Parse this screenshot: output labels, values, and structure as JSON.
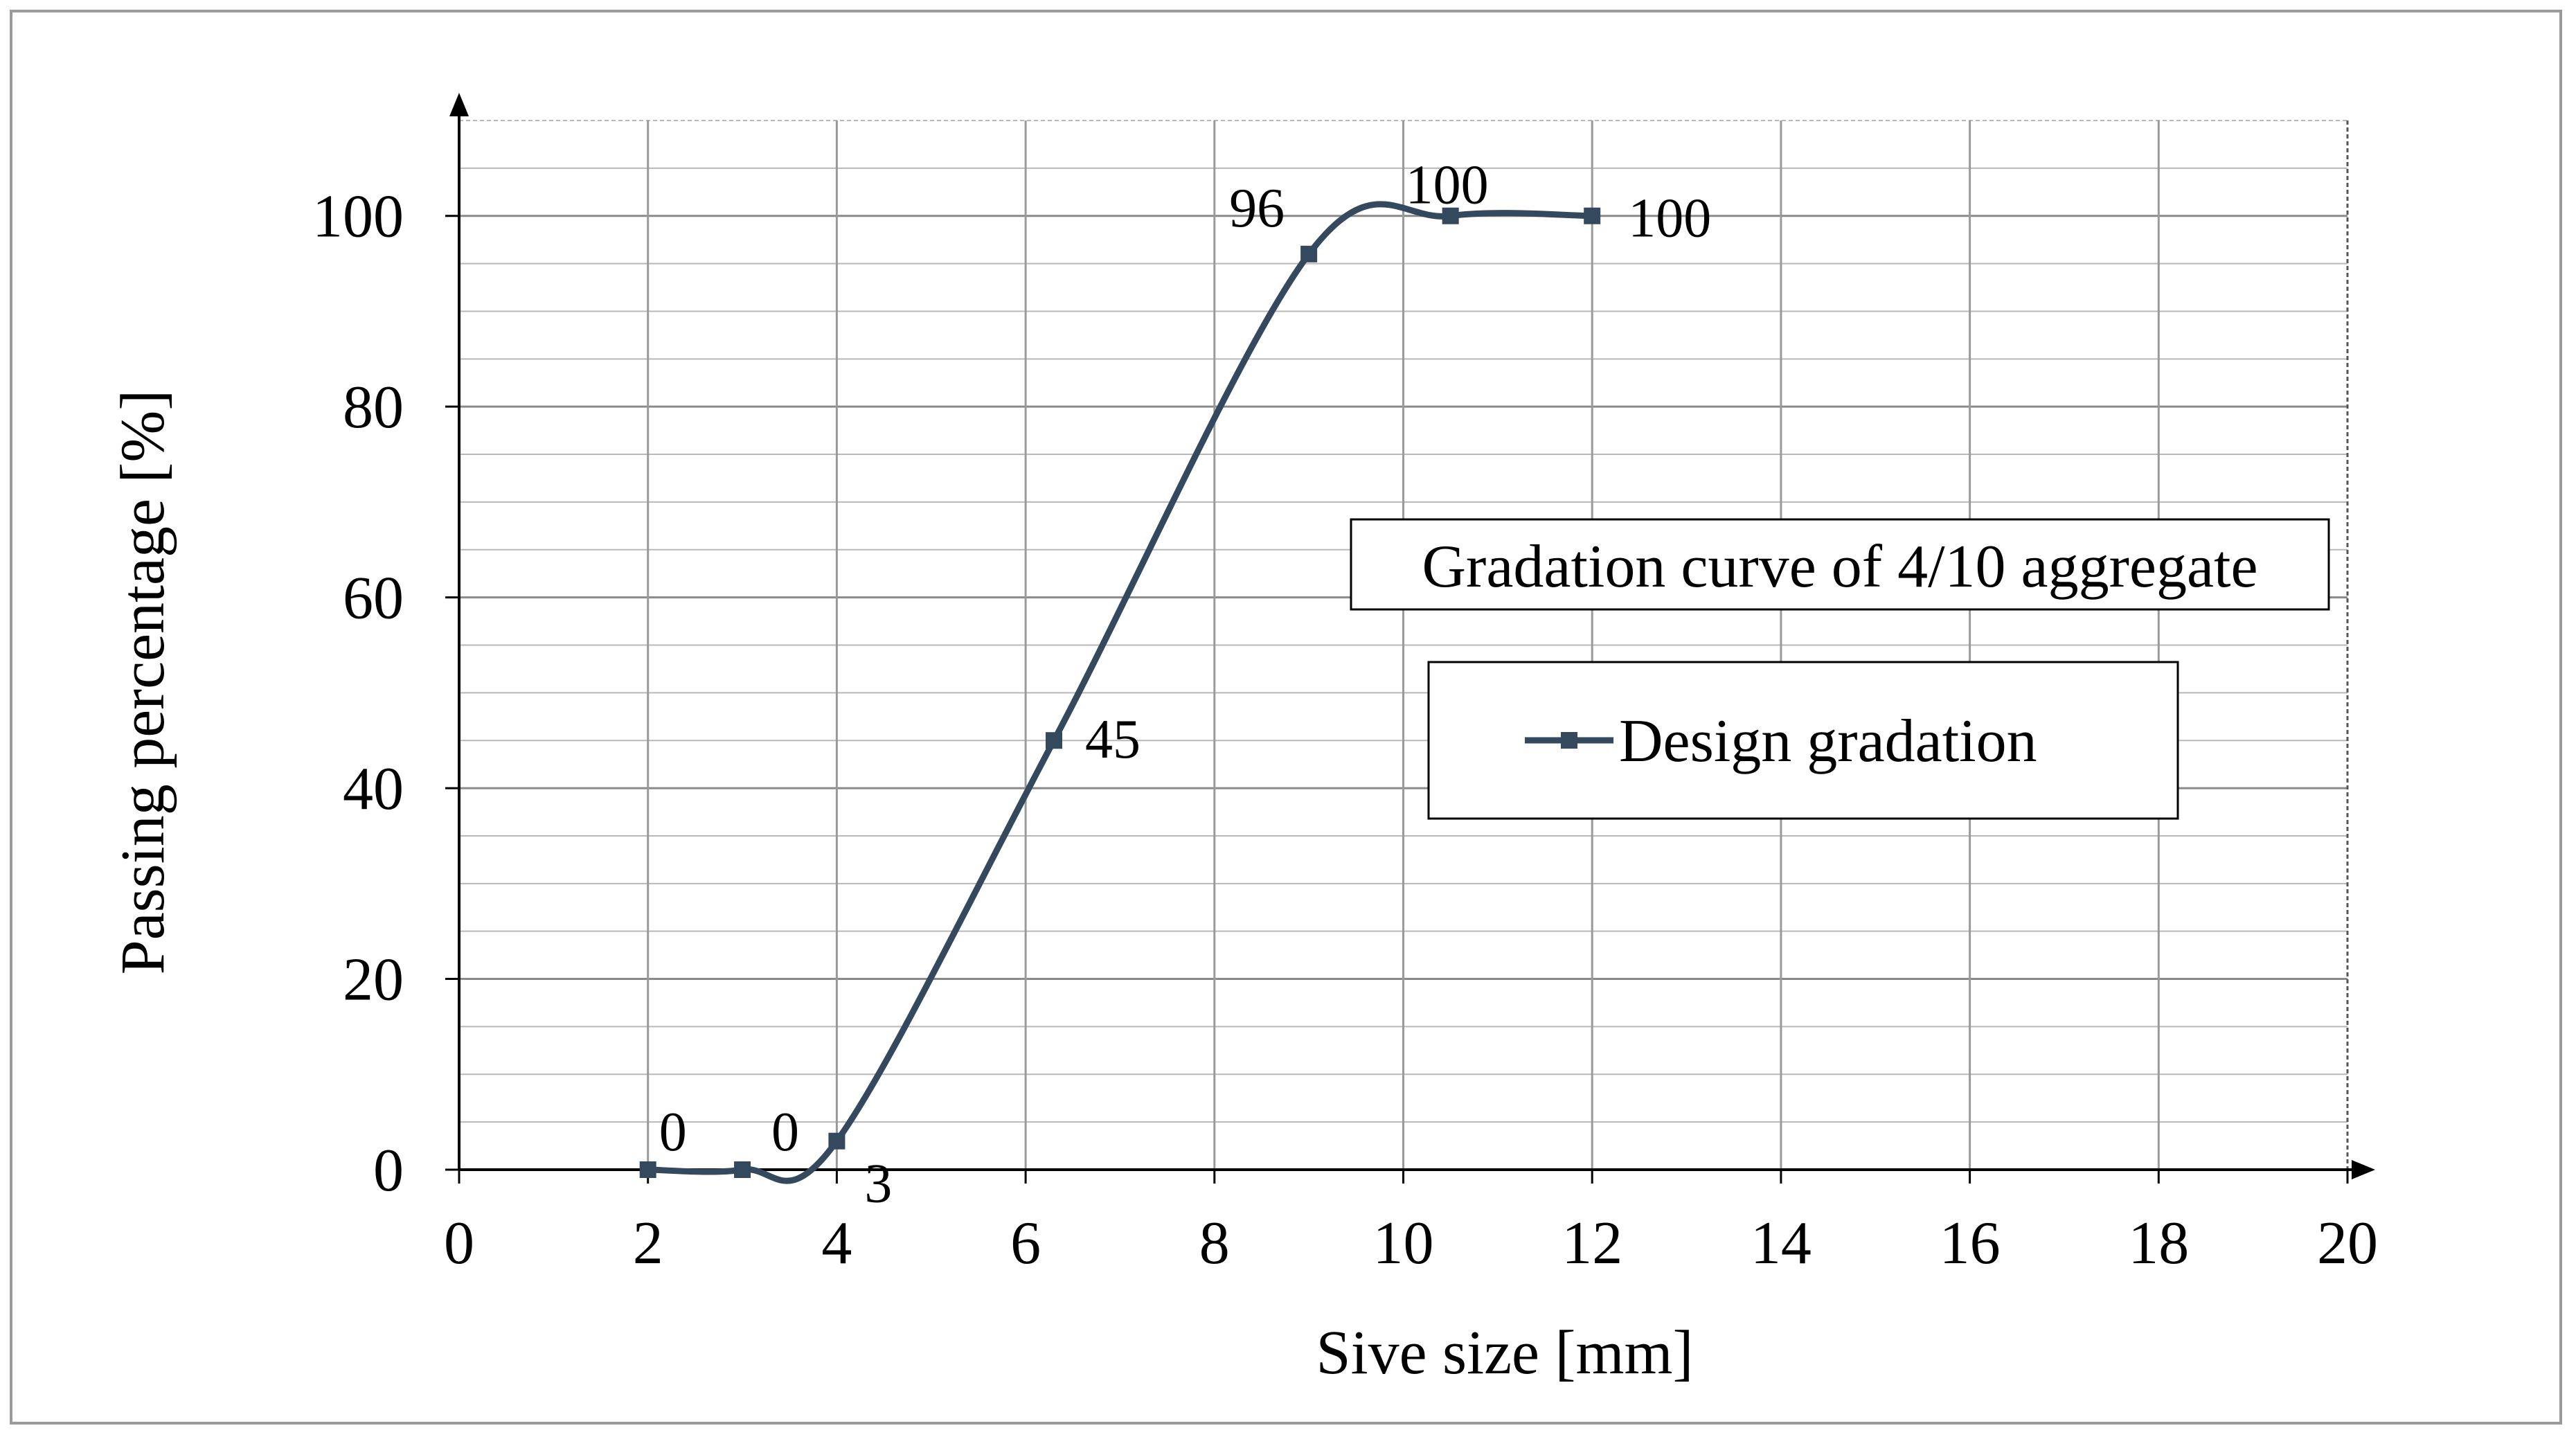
{
  "chart_data": {
    "type": "line",
    "title": "Gradation curve of 4/10 aggregate",
    "xlabel": "Sive size [mm]",
    "ylabel": "Passing percentage [%]",
    "xlim": [
      0,
      20
    ],
    "ylim": [
      0,
      110
    ],
    "x_ticks": [
      0,
      2,
      4,
      6,
      8,
      10,
      12,
      14,
      16,
      18,
      20
    ],
    "y_ticks": [
      0,
      20,
      40,
      60,
      80,
      100
    ],
    "x_minor_step": 2,
    "y_minor_step": 5,
    "grid": true,
    "legend_position": "right",
    "series": [
      {
        "name": "Design gradation",
        "color": "#34495e",
        "marker": "square",
        "x": [
          2,
          3,
          4,
          6.3,
          9,
          10.5,
          12
        ],
        "values": [
          0,
          0,
          3,
          45,
          96,
          100,
          100
        ],
        "data_labels": [
          "0",
          "0",
          "3",
          "45",
          "96",
          "100",
          "100"
        ]
      }
    ]
  }
}
